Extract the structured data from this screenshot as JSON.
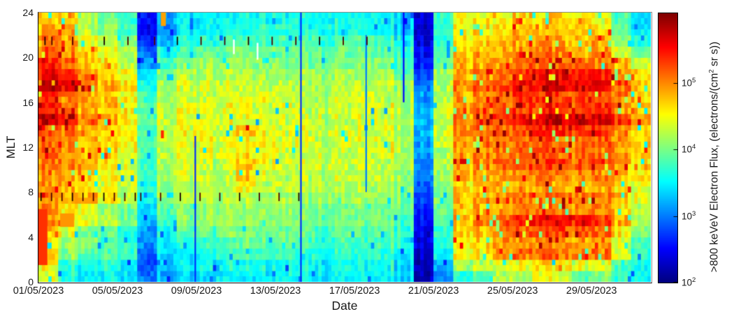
{
  "figure": {
    "background": "#ffffff",
    "text_color": "#1a1a1a"
  },
  "chart_data": {
    "type": "heatmap",
    "title": "",
    "xlabel": "Date",
    "ylabel": "MLT",
    "x_tick_labels": [
      "01/05/2023",
      "05/05/2023",
      "09/05/2023",
      "13/05/2023",
      "17/05/2023",
      "21/05/2023",
      "25/05/2023",
      "29/05/2023"
    ],
    "x_tick_days": [
      0,
      4,
      8,
      12,
      16,
      20,
      24,
      28
    ],
    "x_range_days": [
      0,
      31
    ],
    "y_ticks": [
      0,
      4,
      8,
      12,
      16,
      20,
      24
    ],
    "y_range": [
      0,
      24
    ],
    "colormap": "jet",
    "grid": "off",
    "legend": "colorbar-right",
    "color_scale": {
      "type": "log10",
      "min_exp": 2,
      "max_exp": 6.05,
      "tick_exps": [
        2,
        3,
        4,
        5
      ],
      "tick_base": "10"
    },
    "colorbar_label_pre": ">800 keVeV Electron Flux, (electrons/(cm",
    "colorbar_label_sup": "2",
    "colorbar_label_post": " sr s))",
    "log10_flux_grid": {
      "description": "rows = MLT bins from 0-1 (first) to 23-24 (last); cols = days 01/05/2023 .. 31/05/2023; values = log10 of >800 keV electron flux",
      "rows": [
        [
          4.4,
          3.6,
          3.5,
          3.5,
          3.4,
          2.9,
          3.2,
          3.3,
          3.4,
          3.5,
          3.5,
          3.5,
          3.6,
          3.5,
          3.5,
          3.5,
          3.6,
          3.5,
          3.4,
          2.2,
          3.1,
          3.6,
          3.8,
          4.3,
          4.2,
          4.5,
          4.3,
          3.9,
          4.0,
          3.7,
          3.5
        ],
        [
          4.5,
          3.7,
          3.6,
          3.6,
          3.5,
          2.8,
          3.3,
          3.4,
          3.5,
          3.6,
          3.6,
          3.6,
          3.6,
          3.6,
          3.5,
          3.6,
          3.6,
          3.6,
          3.4,
          2.2,
          3.3,
          4.2,
          4.3,
          4.5,
          4.5,
          4.7,
          4.6,
          4.4,
          4.4,
          3.8,
          3.5
        ],
        [
          4.6,
          4.1,
          3.9,
          3.8,
          3.7,
          2.9,
          3.4,
          3.5,
          3.6,
          3.7,
          3.8,
          3.8,
          3.8,
          3.7,
          3.6,
          3.7,
          3.7,
          3.7,
          3.5,
          2.3,
          3.6,
          4.5,
          4.6,
          5.0,
          5.1,
          5.2,
          5.1,
          5.0,
          5.0,
          4.4,
          3.7
        ],
        [
          4.6,
          4.2,
          4.0,
          3.8,
          3.7,
          3.0,
          3.5,
          3.6,
          3.7,
          3.8,
          3.9,
          3.9,
          3.9,
          3.8,
          3.7,
          3.8,
          3.8,
          3.8,
          3.6,
          2.4,
          3.7,
          4.6,
          4.7,
          5.0,
          5.0,
          5.1,
          5.0,
          4.9,
          4.9,
          4.4,
          3.8
        ],
        [
          4.8,
          4.4,
          4.0,
          3.9,
          3.6,
          3.1,
          3.6,
          3.8,
          3.9,
          4.0,
          4.0,
          4.0,
          4.0,
          3.9,
          3.8,
          3.9,
          3.9,
          3.9,
          3.7,
          2.4,
          3.8,
          4.7,
          4.8,
          5.1,
          5.2,
          5.3,
          5.3,
          5.2,
          5.1,
          4.6,
          4.0
        ],
        [
          5.0,
          4.6,
          4.4,
          4.2,
          4.0,
          3.2,
          3.8,
          4.0,
          4.1,
          4.1,
          4.1,
          4.1,
          4.1,
          4.0,
          3.9,
          4.0,
          4.0,
          4.0,
          3.8,
          2.5,
          3.9,
          4.8,
          4.9,
          5.2,
          5.4,
          5.5,
          5.6,
          5.5,
          5.3,
          4.8,
          4.2
        ],
        [
          4.9,
          4.6,
          4.4,
          4.1,
          4.0,
          3.3,
          3.9,
          4.0,
          4.1,
          4.1,
          4.1,
          4.1,
          4.1,
          4.0,
          4.0,
          4.0,
          4.1,
          4.0,
          3.9,
          2.6,
          4.0,
          4.7,
          4.8,
          5.0,
          5.1,
          5.2,
          5.1,
          5.0,
          5.0,
          4.7,
          4.2
        ],
        [
          5.0,
          4.9,
          4.8,
          4.5,
          4.3,
          3.5,
          4.1,
          4.2,
          4.2,
          4.2,
          4.2,
          4.2,
          4.2,
          4.1,
          4.1,
          4.1,
          4.2,
          4.1,
          4.0,
          2.8,
          4.1,
          4.8,
          4.9,
          5.0,
          5.1,
          5.1,
          5.1,
          5.0,
          5.0,
          4.8,
          4.4
        ],
        [
          4.9,
          4.8,
          4.6,
          4.4,
          4.3,
          3.6,
          4.1,
          4.2,
          4.2,
          4.2,
          4.5,
          4.3,
          4.3,
          4.2,
          4.2,
          4.2,
          4.3,
          4.2,
          4.1,
          2.9,
          4.1,
          4.7,
          4.8,
          4.9,
          4.9,
          5.0,
          4.9,
          4.9,
          4.9,
          4.7,
          4.4
        ],
        [
          4.9,
          4.9,
          4.7,
          4.5,
          4.4,
          3.7,
          4.2,
          4.3,
          4.3,
          4.3,
          4.7,
          4.4,
          4.3,
          4.3,
          4.2,
          4.3,
          4.3,
          4.3,
          4.1,
          3.0,
          4.2,
          4.8,
          4.9,
          5.0,
          5.0,
          5.1,
          5.0,
          5.0,
          5.0,
          4.8,
          4.5
        ],
        [
          5.1,
          5.0,
          4.8,
          4.6,
          4.4,
          3.7,
          4.2,
          4.3,
          4.3,
          4.3,
          4.7,
          4.5,
          4.4,
          4.3,
          4.3,
          4.3,
          4.4,
          4.3,
          4.2,
          3.0,
          4.3,
          4.9,
          5.0,
          5.2,
          5.3,
          5.3,
          5.3,
          5.2,
          5.2,
          4.9,
          4.6
        ],
        [
          5.1,
          5.0,
          4.8,
          4.7,
          4.5,
          3.8,
          4.3,
          4.4,
          4.4,
          4.4,
          4.6,
          4.5,
          4.4,
          4.3,
          4.3,
          4.3,
          4.4,
          4.4,
          4.2,
          3.1,
          4.3,
          4.9,
          5.0,
          5.1,
          5.1,
          5.2,
          5.1,
          5.1,
          5.1,
          4.9,
          4.6
        ],
        [
          5.1,
          5.0,
          4.8,
          4.7,
          4.5,
          3.8,
          4.3,
          4.4,
          4.4,
          4.4,
          4.5,
          4.5,
          4.4,
          4.4,
          4.3,
          4.4,
          4.4,
          4.4,
          4.2,
          3.1,
          4.4,
          4.9,
          5.0,
          5.1,
          5.1,
          5.2,
          5.1,
          5.1,
          5.1,
          4.9,
          4.7
        ],
        [
          5.2,
          5.1,
          4.9,
          4.7,
          4.5,
          3.8,
          4.3,
          4.4,
          4.4,
          4.4,
          4.7,
          4.5,
          4.4,
          4.4,
          4.3,
          4.4,
          4.4,
          4.4,
          4.2,
          3.2,
          4.4,
          5.0,
          5.1,
          5.2,
          5.3,
          5.4,
          5.4,
          5.3,
          5.3,
          5.0,
          4.7
        ],
        [
          5.8,
          5.5,
          5.0,
          4.8,
          4.6,
          3.8,
          4.3,
          4.4,
          4.4,
          4.4,
          4.4,
          4.4,
          4.4,
          4.3,
          4.3,
          4.3,
          4.4,
          4.4,
          4.2,
          3.2,
          4.4,
          5.0,
          5.2,
          5.4,
          5.6,
          5.7,
          5.8,
          5.7,
          5.6,
          5.4,
          4.9
        ],
        [
          5.4,
          5.2,
          4.9,
          4.8,
          4.6,
          3.8,
          4.3,
          4.4,
          4.4,
          4.4,
          4.4,
          4.4,
          4.4,
          4.3,
          4.3,
          4.3,
          4.4,
          4.4,
          4.2,
          3.2,
          4.4,
          5.0,
          5.1,
          5.2,
          5.3,
          5.4,
          5.4,
          5.3,
          5.3,
          5.0,
          4.7
        ],
        [
          5.3,
          5.1,
          4.9,
          4.7,
          4.5,
          3.7,
          4.2,
          4.3,
          4.3,
          4.3,
          4.4,
          4.4,
          4.3,
          4.3,
          4.2,
          4.3,
          4.4,
          4.3,
          4.2,
          3.1,
          4.3,
          4.9,
          5.0,
          5.2,
          5.3,
          5.4,
          5.3,
          5.3,
          5.2,
          5.0,
          4.6
        ],
        [
          5.9,
          5.7,
          5.1,
          4.8,
          4.6,
          3.6,
          4.2,
          4.3,
          4.3,
          4.3,
          4.3,
          4.3,
          4.3,
          4.2,
          4.2,
          4.2,
          4.3,
          4.3,
          4.1,
          3.0,
          4.3,
          5.0,
          5.1,
          5.3,
          5.5,
          5.6,
          5.7,
          5.6,
          5.5,
          5.2,
          4.7
        ],
        [
          5.6,
          5.4,
          5.0,
          4.7,
          4.5,
          3.4,
          4.0,
          4.2,
          4.2,
          4.2,
          4.2,
          4.2,
          4.2,
          4.2,
          4.1,
          4.2,
          4.2,
          4.2,
          3.9,
          2.8,
          4.2,
          4.9,
          5.0,
          5.2,
          5.4,
          5.6,
          5.6,
          5.5,
          5.4,
          5.1,
          4.6
        ],
        [
          5.4,
          5.2,
          4.8,
          4.6,
          4.3,
          3.1,
          3.8,
          4.0,
          4.1,
          4.1,
          4.1,
          4.1,
          4.1,
          4.0,
          4.0,
          4.0,
          4.1,
          4.1,
          3.8,
          2.6,
          4.0,
          4.8,
          4.9,
          5.0,
          5.1,
          5.2,
          5.1,
          5.1,
          5.0,
          4.8,
          4.3
        ],
        [
          5.2,
          5.0,
          4.7,
          4.4,
          4.2,
          2.9,
          3.6,
          3.8,
          3.9,
          3.9,
          4.0,
          4.0,
          4.0,
          3.9,
          3.9,
          3.9,
          4.0,
          3.9,
          3.7,
          2.5,
          3.9,
          4.7,
          4.8,
          4.9,
          5.0,
          5.0,
          5.0,
          4.9,
          4.9,
          4.4,
          3.9
        ],
        [
          5.0,
          4.9,
          4.5,
          4.2,
          4.0,
          2.6,
          3.3,
          3.6,
          3.7,
          3.7,
          3.8,
          3.8,
          3.8,
          3.8,
          3.7,
          3.8,
          3.9,
          3.8,
          3.5,
          2.4,
          3.8,
          4.6,
          4.7,
          4.8,
          4.9,
          5.0,
          4.9,
          4.8,
          4.8,
          4.1,
          3.6
        ],
        [
          4.9,
          4.8,
          4.3,
          4.0,
          3.8,
          2.4,
          3.1,
          3.4,
          3.5,
          3.5,
          3.6,
          3.7,
          3.7,
          3.6,
          3.6,
          3.6,
          3.7,
          3.6,
          3.3,
          2.3,
          3.7,
          4.5,
          4.6,
          4.7,
          4.8,
          4.8,
          4.8,
          4.7,
          4.6,
          3.9,
          3.4
        ],
        [
          4.8,
          4.6,
          4.2,
          3.9,
          3.7,
          2.5,
          3.2,
          3.4,
          3.5,
          3.5,
          3.6,
          3.6,
          3.6,
          3.6,
          3.5,
          3.6,
          3.6,
          3.6,
          3.3,
          2.4,
          3.8,
          4.4,
          4.5,
          4.6,
          4.7,
          4.7,
          4.7,
          4.6,
          4.5,
          3.8,
          3.4
        ]
      ]
    },
    "events": {
      "data_gap_dashes": [
        {
          "mlt_range": [
            7.2,
            7.95
          ],
          "days": [
            0.1,
            0.63,
            1.16,
            1.69,
            2.22,
            2.75,
            3.28,
            3.81,
            4.34,
            4.87,
            5.15,
            6.15,
            7.15,
            8.15,
            9.15,
            10.15,
            11.15,
            12.15,
            13.15
          ]
        },
        {
          "mlt_range": [
            21.1,
            21.85
          ],
          "days": [
            0.3,
            0.65,
            1.7,
            3.3,
            4.5,
            5.85,
            7.0,
            8.2,
            9.4,
            10.6,
            11.8,
            13.0,
            14.2,
            15.4,
            16.6
          ]
        }
      ],
      "white_gaps": [
        {
          "day": 9.85,
          "mlt_range": [
            20.3,
            21.6
          ]
        },
        {
          "day": 11.05,
          "mlt_range": [
            19.8,
            21.3
          ]
        }
      ],
      "cool_streaks": [
        {
          "day": 7.9,
          "mlt_range": [
            0,
            13
          ],
          "log10_flux": 2.7
        },
        {
          "day": 13.25,
          "mlt_range": [
            0,
            24
          ],
          "log10_flux": 2.7
        },
        {
          "day": 16.55,
          "mlt_range": [
            8,
            22
          ],
          "log10_flux": 3.0
        },
        {
          "day": 18.45,
          "mlt_range": [
            16,
            24
          ],
          "log10_flux": 2.5
        }
      ],
      "warm_patches": [
        {
          "day_range": [
            0.0,
            0.45
          ],
          "mlt_range": [
            1.5,
            6.5
          ],
          "log10_flux": 5.35
        },
        {
          "day_range": [
            1.1,
            1.8
          ],
          "mlt_range": [
            4.9,
            6.1
          ],
          "log10_flux": 4.95
        },
        {
          "day_range": [
            6.2,
            6.45
          ],
          "mlt_range": [
            22.8,
            24.0
          ],
          "log10_flux": 4.9
        },
        {
          "day_range": [
            6.2,
            6.35
          ],
          "mlt_range": [
            12.8,
            13.5
          ],
          "log10_flux": 5.4
        }
      ]
    }
  }
}
